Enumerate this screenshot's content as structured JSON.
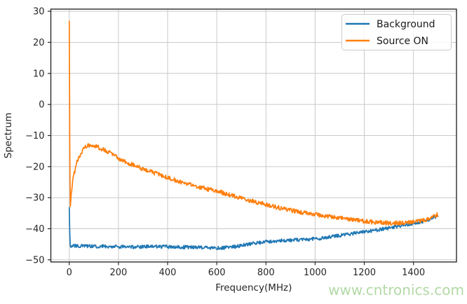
{
  "figure": {
    "background_color": "#ffffff",
    "watermark": {
      "text": "www.cntronics.com",
      "color": "#b3d9a6"
    }
  },
  "chart_data": {
    "type": "line",
    "title": "",
    "xlabel": "Frequency(MHz)",
    "ylabel": "Spectrum",
    "xlim": [
      -75,
      1575
    ],
    "ylim": [
      -50.7,
      30.7
    ],
    "x_ticks": [
      0,
      200,
      400,
      600,
      800,
      1000,
      1200,
      1400
    ],
    "y_ticks": [
      -50,
      -40,
      -30,
      -20,
      -10,
      0,
      10,
      20,
      30
    ],
    "grid": true,
    "grid_color": "#c9c9c9",
    "spine_color": "#2a2a2a",
    "tick_label_color": "#262626",
    "legend": {
      "position": "upper right",
      "border_color": "#cccccc",
      "background": "#ffffff"
    },
    "series": [
      {
        "name": "Background",
        "color": "#1f77b4",
        "line_width": 1.7,
        "noise_amplitude": 0.55,
        "sample_step_mhz": 2,
        "trend_points": [
          [
            0,
            -33
          ],
          [
            3,
            -45.5
          ],
          [
            60,
            -45.6
          ],
          [
            150,
            -45.7
          ],
          [
            250,
            -45.9
          ],
          [
            350,
            -45.7
          ],
          [
            450,
            -45.9
          ],
          [
            550,
            -46.1
          ],
          [
            620,
            -46.2
          ],
          [
            680,
            -45.7
          ],
          [
            720,
            -45.1
          ],
          [
            780,
            -44.4
          ],
          [
            840,
            -43.9
          ],
          [
            900,
            -43.7
          ],
          [
            960,
            -43.5
          ],
          [
            1020,
            -43.1
          ],
          [
            1080,
            -42.4
          ],
          [
            1140,
            -41.7
          ],
          [
            1200,
            -41.0
          ],
          [
            1260,
            -40.3
          ],
          [
            1320,
            -39.4
          ],
          [
            1380,
            -38.6
          ],
          [
            1430,
            -37.8
          ],
          [
            1470,
            -36.9
          ],
          [
            1500,
            -35.8
          ]
        ]
      },
      {
        "name": "Source ON",
        "color": "#ff7f0e",
        "line_width": 1.7,
        "noise_amplitude": 0.7,
        "sample_step_mhz": 2,
        "trend_points": [
          [
            0,
            27
          ],
          [
            3,
            -34
          ],
          [
            8,
            -28.5
          ],
          [
            15,
            -24
          ],
          [
            25,
            -20.5
          ],
          [
            35,
            -17.8
          ],
          [
            45,
            -16
          ],
          [
            55,
            -14.6
          ],
          [
            65,
            -13.6
          ],
          [
            80,
            -13.1
          ],
          [
            95,
            -13.3
          ],
          [
            110,
            -13.6
          ],
          [
            140,
            -14.5
          ],
          [
            170,
            -15.8
          ],
          [
            200,
            -17.3
          ],
          [
            240,
            -18.8
          ],
          [
            280,
            -20.1
          ],
          [
            320,
            -21.3
          ],
          [
            360,
            -22.4
          ],
          [
            400,
            -23.5
          ],
          [
            450,
            -24.9
          ],
          [
            500,
            -26.0
          ],
          [
            550,
            -27.0
          ],
          [
            600,
            -27.9
          ],
          [
            650,
            -29.1
          ],
          [
            700,
            -30.2
          ],
          [
            750,
            -31.2
          ],
          [
            800,
            -32.2
          ],
          [
            850,
            -33.2
          ],
          [
            900,
            -34.1
          ],
          [
            950,
            -34.8
          ],
          [
            1000,
            -35.4
          ],
          [
            1060,
            -36.1
          ],
          [
            1120,
            -36.8
          ],
          [
            1180,
            -37.4
          ],
          [
            1240,
            -37.9
          ],
          [
            1300,
            -38.2
          ],
          [
            1360,
            -38.1
          ],
          [
            1410,
            -37.7
          ],
          [
            1450,
            -37.1
          ],
          [
            1480,
            -36.3
          ],
          [
            1500,
            -35.3
          ]
        ]
      }
    ]
  }
}
